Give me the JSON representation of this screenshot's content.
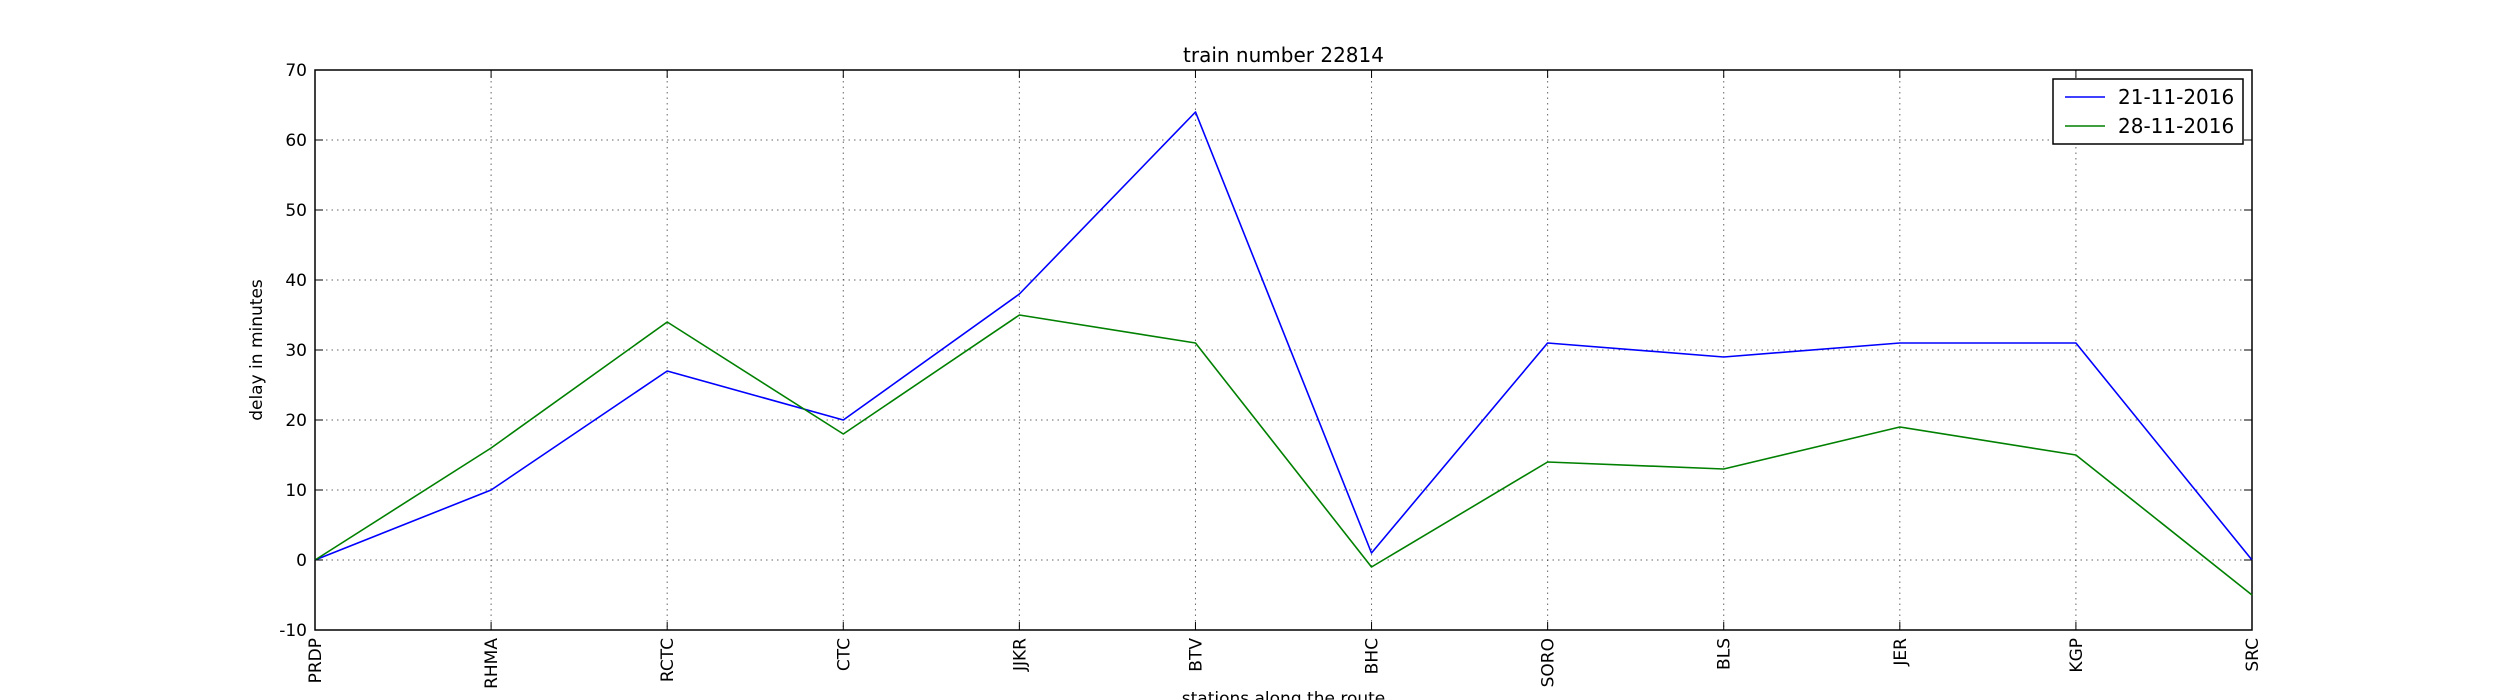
{
  "chart_data": {
    "type": "line",
    "title": "train number 22814",
    "xlabel": "stations along the route",
    "ylabel": "delay in minutes",
    "categories": [
      "PRDP",
      "RHMA",
      "RCTC",
      "CTC",
      "JJKR",
      "BTV",
      "BHC",
      "SORO",
      "BLS",
      "JER",
      "KGP",
      "SRC"
    ],
    "ylim": [
      -10,
      70
    ],
    "yticks": [
      -10,
      0,
      10,
      20,
      30,
      40,
      50,
      60,
      70
    ],
    "grid": true,
    "legend_position": "top-right",
    "series": [
      {
        "name": "21-11-2016",
        "color": "#0000ff",
        "values": [
          0,
          10,
          27,
          20,
          38,
          64,
          1,
          31,
          29,
          31,
          31,
          0
        ]
      },
      {
        "name": "28-11-2016",
        "color": "#008000",
        "values": [
          0,
          16,
          34,
          18,
          35,
          31,
          -1,
          14,
          13,
          19,
          15,
          -5
        ]
      }
    ]
  }
}
